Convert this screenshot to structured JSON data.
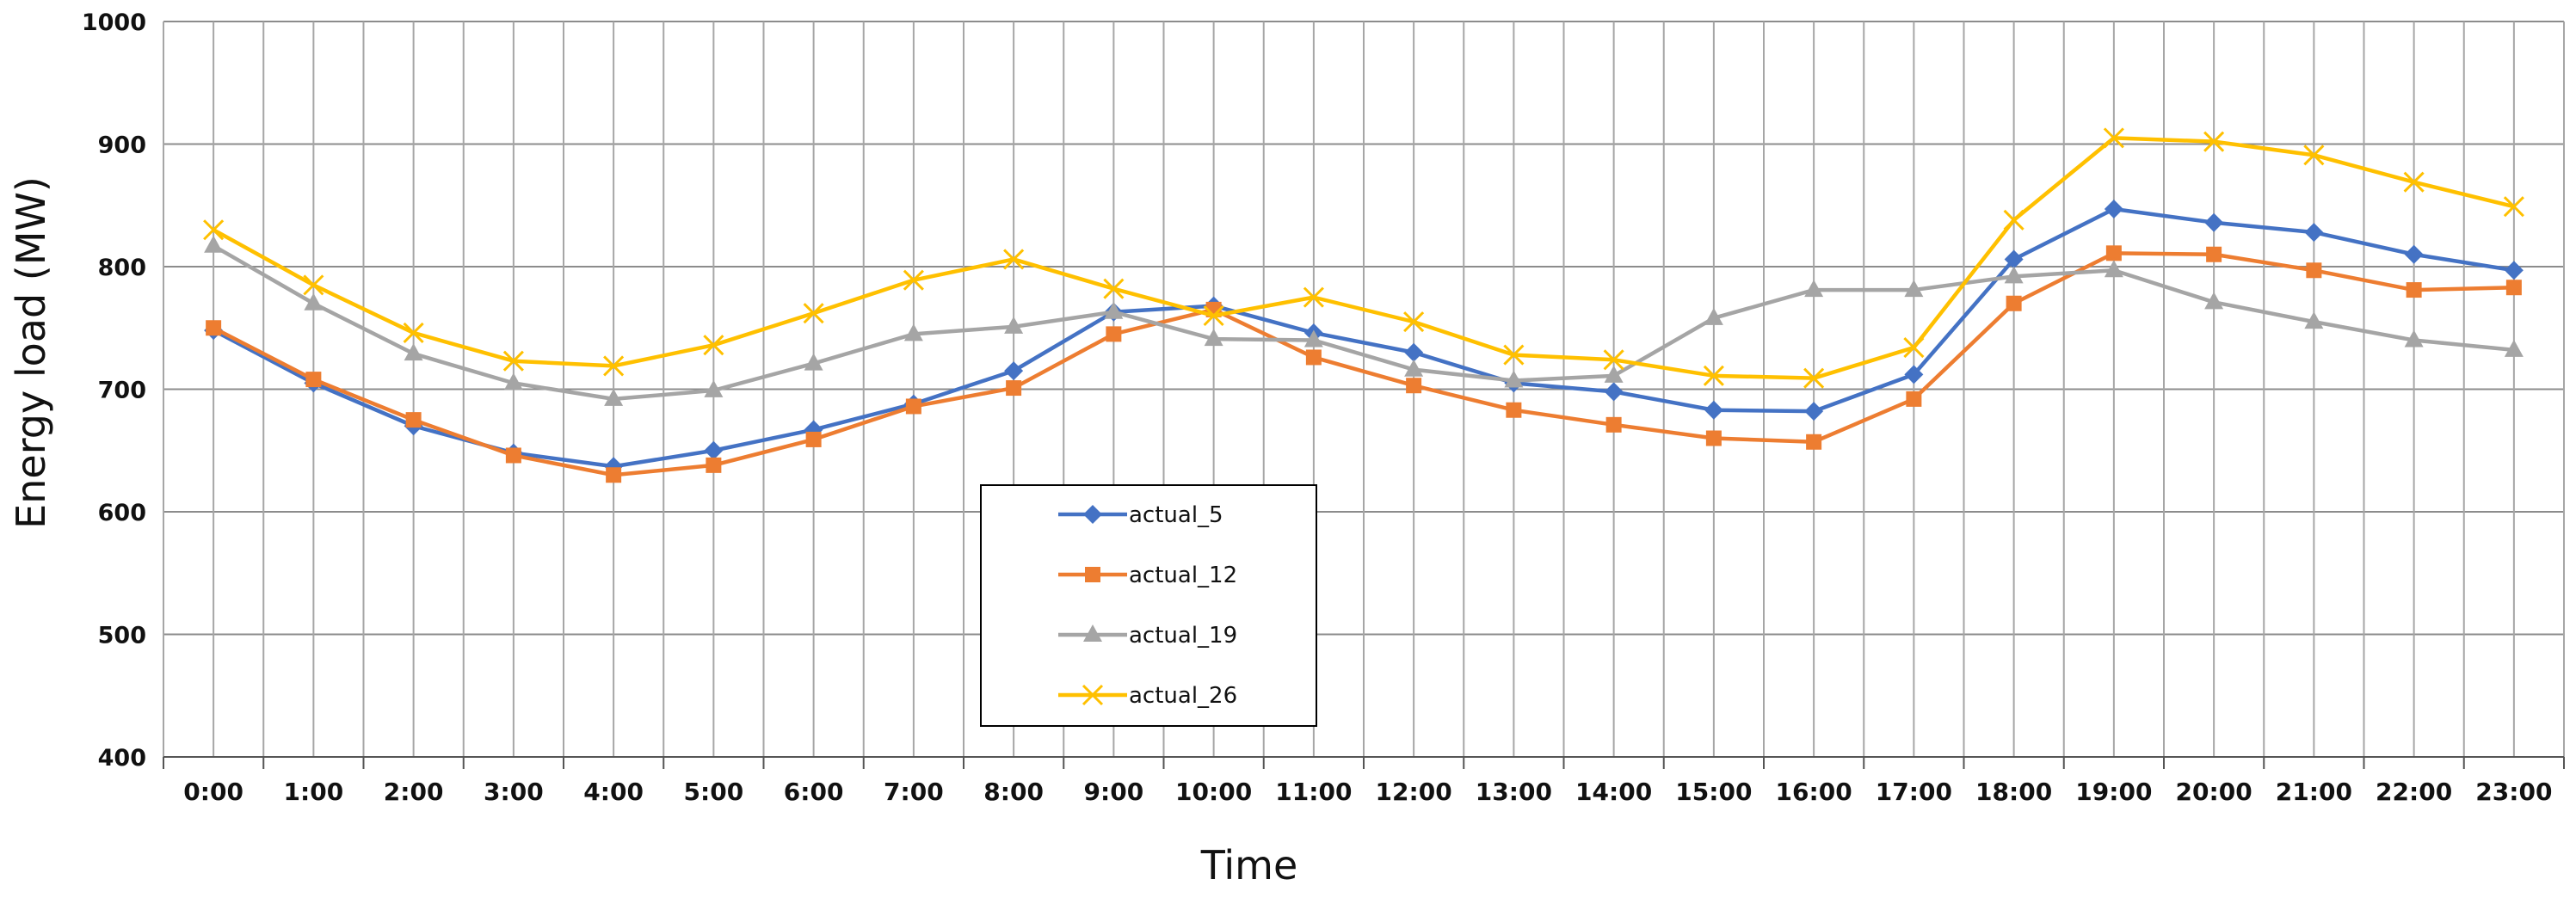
{
  "chart_data": {
    "type": "line",
    "xlabel": "Time",
    "ylabel": "Energy load  (MW)",
    "ylim": [
      400,
      1000
    ],
    "yticks": [
      400,
      500,
      600,
      700,
      800,
      900,
      1000
    ],
    "grid": true,
    "legend_position": "center",
    "categories": [
      "0:00",
      "1:00",
      "2:00",
      "3:00",
      "4:00",
      "5:00",
      "6:00",
      "7:00",
      "8:00",
      "9:00",
      "10:00",
      "11:00",
      "12:00",
      "13:00",
      "14:00",
      "15:00",
      "16:00",
      "17:00",
      "18:00",
      "19:00",
      "20:00",
      "21:00",
      "22:00",
      "23:00"
    ],
    "series": [
      {
        "name": "actual_5",
        "color": "#4472C4",
        "marker": "diamond",
        "values": [
          748,
          705,
          670,
          648,
          637,
          650,
          667,
          688,
          715,
          763,
          768,
          746,
          730,
          705,
          698,
          683,
          682,
          712,
          806,
          847,
          836,
          828,
          810,
          797
        ]
      },
      {
        "name": "actual_12",
        "color": "#ED7D31",
        "marker": "square",
        "values": [
          750,
          708,
          675,
          646,
          630,
          638,
          659,
          686,
          701,
          745,
          765,
          726,
          703,
          683,
          671,
          660,
          657,
          692,
          770,
          811,
          810,
          797,
          781,
          783
        ]
      },
      {
        "name": "actual_19",
        "color": "#A5A5A5",
        "marker": "triangle",
        "values": [
          817,
          770,
          729,
          705,
          692,
          699,
          721,
          745,
          751,
          763,
          741,
          740,
          716,
          707,
          711,
          758,
          781,
          781,
          792,
          797,
          771,
          755,
          740,
          732
        ]
      },
      {
        "name": "actual_26",
        "color": "#FFC000",
        "marker": "x",
        "values": [
          830,
          785,
          746,
          723,
          719,
          736,
          762,
          789,
          806,
          782,
          760,
          775,
          755,
          728,
          724,
          711,
          709,
          734,
          838,
          905,
          902,
          891,
          869,
          849
        ]
      }
    ]
  }
}
